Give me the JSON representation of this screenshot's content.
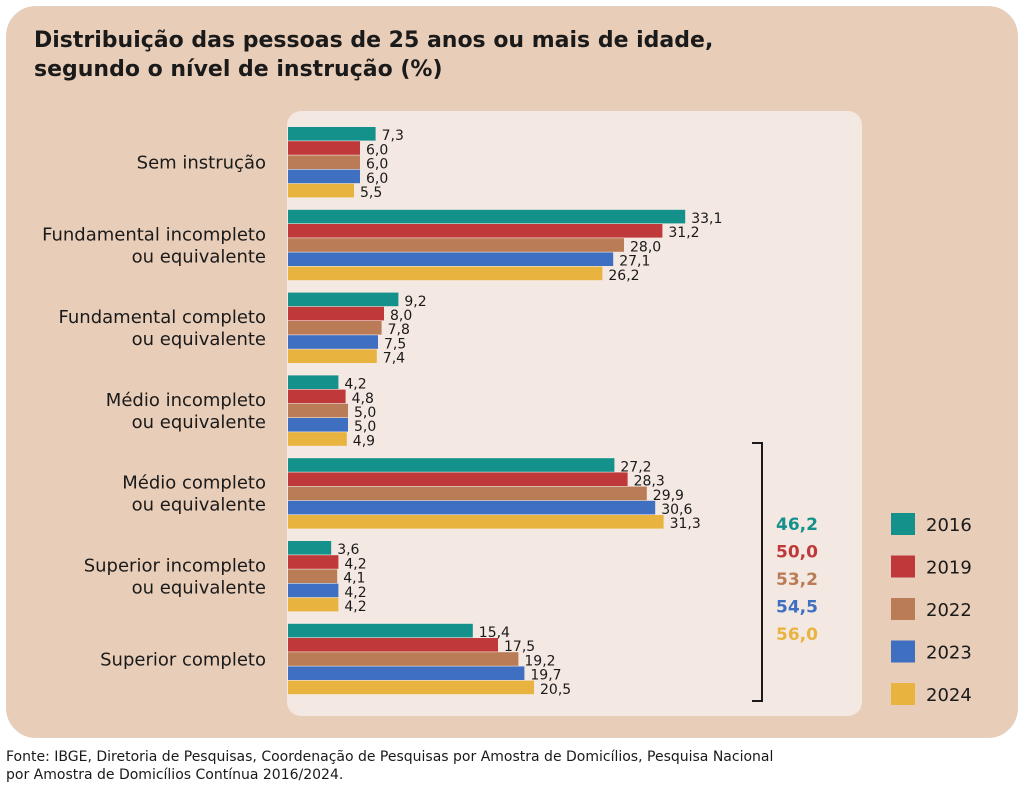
{
  "title_line1": "Distribuição das pessoas de 25 anos ou mais de idade,",
  "title_line2": "segundo o nível de instrução (%)",
  "source_line1": "Fonte: IBGE, Diretoria de Pesquisas, Coordenação de Pesquisas por Amostra de Domicílios, Pesquisa Nacional",
  "source_line2": "por Amostra de Domicílios Contínua 2016/2024.",
  "bracket_totals": [
    {
      "year": "2016",
      "value": "46,2"
    },
    {
      "year": "2019",
      "value": "50,0"
    },
    {
      "year": "2022",
      "value": "53,2"
    },
    {
      "year": "2023",
      "value": "54,5"
    },
    {
      "year": "2024",
      "value": "56,0"
    }
  ],
  "chart_data": {
    "type": "bar",
    "orientation": "horizontal",
    "title": "Distribuição das pessoas de 25 anos ou mais de idade, segundo o nível de instrução (%)",
    "categories": [
      [
        "Sem instrução"
      ],
      [
        "Fundamental incompleto",
        "ou equivalente"
      ],
      [
        "Fundamental completo",
        "ou equivalente"
      ],
      [
        "Médio incompleto",
        "ou equivalente"
      ],
      [
        "Médio completo",
        "ou equivalente"
      ],
      [
        "Superior incompleto",
        "ou equivalente"
      ],
      [
        "Superior completo"
      ]
    ],
    "series": [
      {
        "name": "2016",
        "color": "#13918a",
        "values": [
          7.3,
          33.1,
          9.2,
          4.2,
          27.2,
          3.6,
          15.4
        ],
        "labels": [
          "7,3",
          "33,1",
          "9,2",
          "4,2",
          "27,2",
          "3,6",
          "15,4"
        ]
      },
      {
        "name": "2019",
        "color": "#c0393a",
        "values": [
          6.0,
          31.2,
          8.0,
          4.8,
          28.3,
          4.2,
          17.5
        ],
        "labels": [
          "6,0",
          "31,2",
          "8,0",
          "4,8",
          "28,3",
          "4,2",
          "17,5"
        ]
      },
      {
        "name": "2022",
        "color": "#b97c56",
        "values": [
          6.0,
          28.0,
          7.8,
          5.0,
          29.9,
          4.1,
          19.2
        ],
        "labels": [
          "6,0",
          "28,0",
          "7,8",
          "5,0",
          "29,9",
          "4,1",
          "19,2"
        ]
      },
      {
        "name": "2023",
        "color": "#3e6fc1",
        "values": [
          6.0,
          27.1,
          7.5,
          5.0,
          30.6,
          4.2,
          19.7
        ],
        "labels": [
          "6,0",
          "27,1",
          "7,5",
          "5,0",
          "30,6",
          "4,2",
          "19,7"
        ]
      },
      {
        "name": "2024",
        "color": "#e8b43f",
        "values": [
          5.5,
          26.2,
          7.4,
          4.9,
          31.3,
          4.2,
          20.5
        ],
        "labels": [
          "5,5",
          "26,2",
          "7,4",
          "4,9",
          "31,3",
          "4,2",
          "20,5"
        ]
      }
    ],
    "xlim": [
      0,
      50
    ],
    "legend_position": "right",
    "grid": false
  }
}
